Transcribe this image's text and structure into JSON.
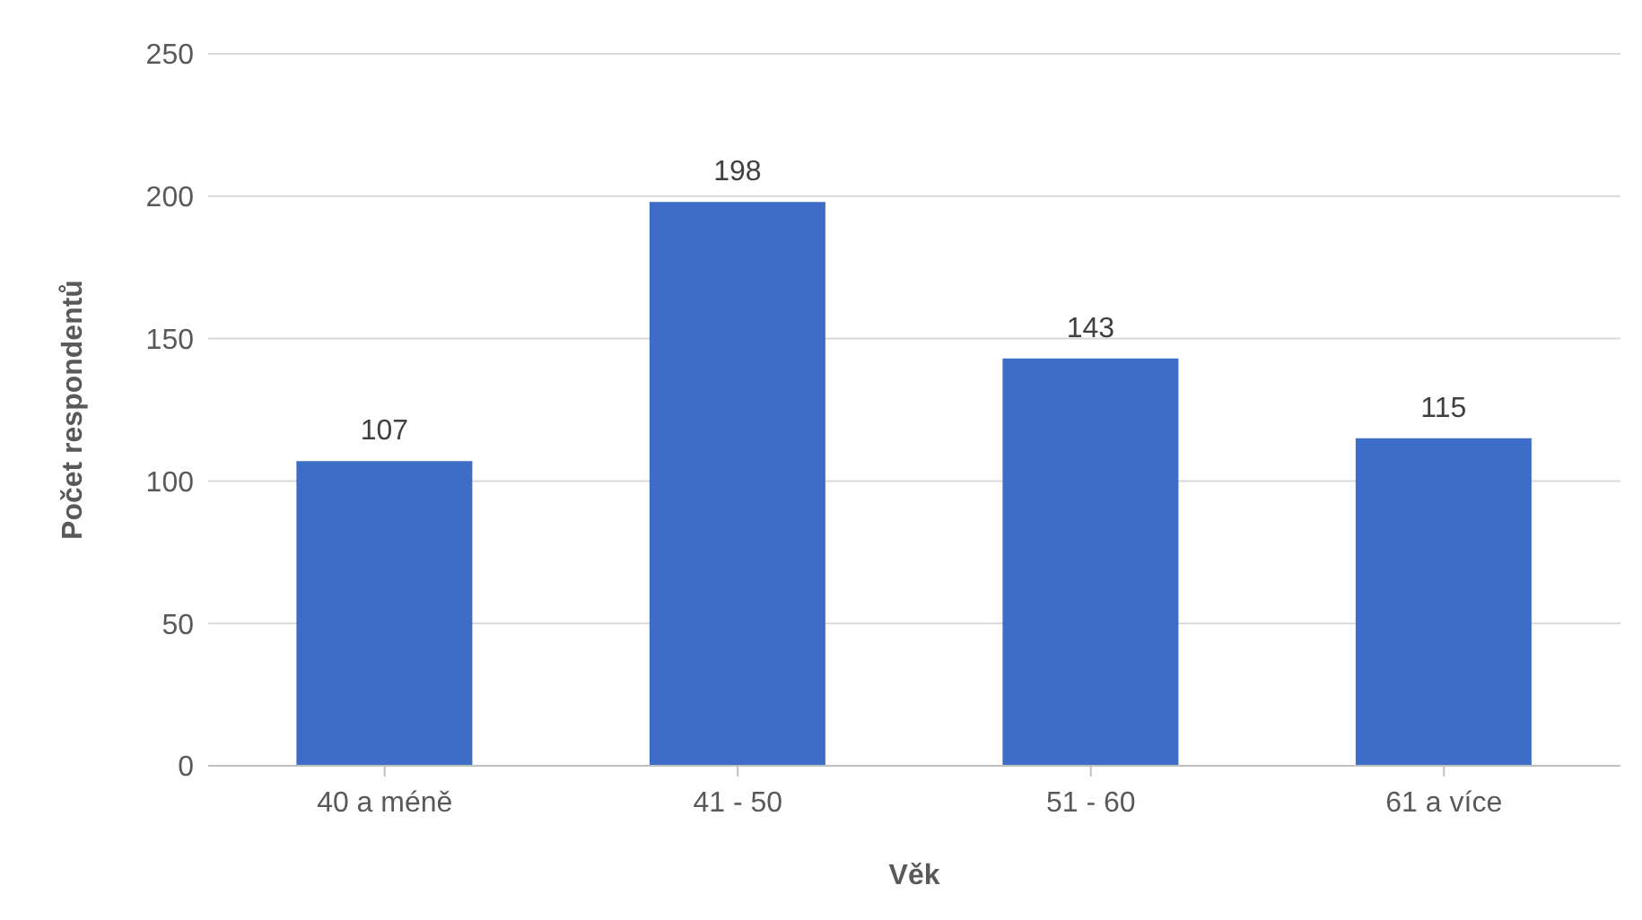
{
  "chart_data": {
    "type": "bar",
    "xlabel": "Věk",
    "ylabel": "Počet respondentů",
    "categories": [
      "40 a méně",
      "41 - 50",
      "51 - 60",
      "61 a více"
    ],
    "values": [
      107,
      198,
      143,
      115
    ],
    "color": "#3e6dc8",
    "ylim": [
      0,
      250
    ],
    "yticks": [
      0,
      50,
      100,
      150,
      200,
      250
    ],
    "grid": "y",
    "data_labels": true
  }
}
